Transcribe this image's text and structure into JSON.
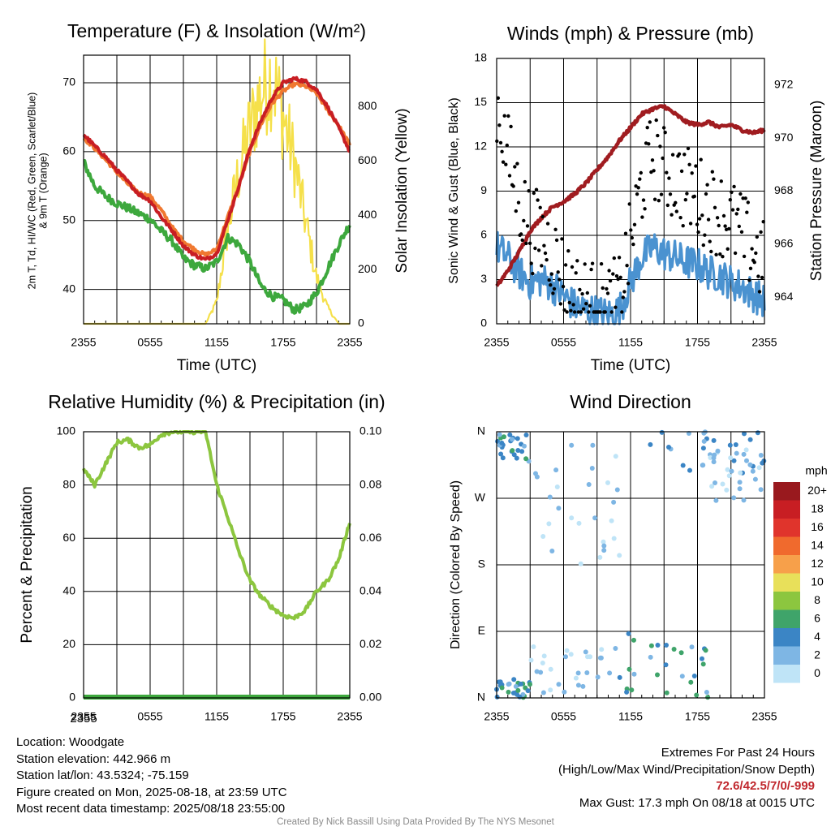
{
  "chart_data": [
    {
      "type": "line",
      "title": "Temperature (F) & Insolation (W/m²)",
      "xlabel": "Time (UTC)",
      "ylabel_lines": [
        "2m T, Td, HI/WC (Red, Green, Scarlet/Blue)",
        "& 9m T (Orange)"
      ],
      "y2label": "Solar Insolation (Yellow)",
      "x_ticks": [
        "2355",
        "0555",
        "1155",
        "1755",
        "2355"
      ],
      "y_ticks": [
        40,
        50,
        60,
        70
      ],
      "y2_ticks": [
        0,
        200,
        400,
        600,
        800
      ],
      "ylim": [
        35,
        74
      ],
      "y2lim": [
        0,
        990
      ],
      "grid": true,
      "x_hours": [
        0,
        1,
        2,
        3,
        4,
        5,
        6,
        7,
        8,
        9,
        10,
        11,
        12,
        13,
        14,
        15,
        16,
        17,
        18,
        19,
        20,
        21,
        22,
        23,
        24
      ],
      "series": [
        {
          "name": "2m T",
          "color": "#c81e23",
          "axis": "left",
          "values": [
            62.5,
            60.8,
            59.2,
            57.3,
            55.6,
            53.8,
            52.9,
            50.5,
            48.5,
            46.3,
            45.0,
            44.3,
            45.2,
            50.0,
            55.0,
            60.5,
            64.5,
            67.8,
            70.0,
            70.6,
            70.2,
            69.0,
            66.5,
            63.5,
            60.0
          ]
        },
        {
          "name": "9m T",
          "color": "#f07830",
          "axis": "left",
          "values": [
            62.0,
            60.5,
            58.8,
            57.0,
            55.3,
            54.0,
            53.5,
            51.5,
            49.0,
            47.0,
            45.8,
            45.0,
            45.8,
            50.5,
            55.0,
            60.0,
            64.0,
            67.0,
            68.8,
            69.8,
            69.5,
            68.5,
            66.0,
            63.8,
            61.0
          ]
        },
        {
          "name": "Td",
          "color": "#3da83d",
          "axis": "left",
          "values": [
            58.5,
            55.0,
            53.5,
            52.5,
            51.8,
            51.0,
            50.2,
            48.5,
            47.0,
            44.5,
            43.5,
            43.0,
            44.0,
            47.5,
            46.5,
            44.0,
            40.5,
            39.0,
            38.5,
            37.0,
            37.5,
            39.5,
            43.0,
            46.5,
            49.5
          ]
        },
        {
          "name": "Solar Insolation",
          "color": "#f5e04a",
          "axis": "right",
          "values": [
            0,
            0,
            0,
            0,
            0,
            0,
            0,
            0,
            0,
            0,
            0,
            0,
            80,
            350,
            560,
            720,
            850,
            920,
            760,
            600,
            380,
            170,
            60,
            0,
            0
          ]
        }
      ]
    },
    {
      "type": "line",
      "title": "Winds (mph) & Pressure (mb)",
      "xlabel": "Time (UTC)",
      "ylabel": "Sonic Wind & Gust (Blue, Black)",
      "y2label": "Station Pressure (Maroon)",
      "x_ticks": [
        "2355",
        "0555",
        "1155",
        "1755",
        "2355"
      ],
      "y_ticks": [
        0,
        3,
        6,
        9,
        12,
        15,
        18
      ],
      "y2_ticks": [
        964,
        966,
        968,
        970,
        972
      ],
      "ylim": [
        0,
        18
      ],
      "y2lim": [
        963,
        973
      ],
      "grid": true,
      "x_hours": [
        0,
        1,
        2,
        3,
        4,
        5,
        6,
        7,
        8,
        9,
        10,
        11,
        12,
        13,
        14,
        15,
        16,
        17,
        18,
        19,
        20,
        21,
        22,
        23,
        24
      ],
      "series": [
        {
          "name": "Sonic Wind",
          "color": "#4a92d0",
          "axis": "left",
          "values": [
            5.2,
            4.5,
            3.5,
            2.8,
            3.0,
            2.6,
            1.9,
            1.2,
            0.9,
            0.8,
            0.6,
            0.9,
            2.8,
            4.5,
            5.2,
            4.8,
            4.5,
            4.2,
            4.0,
            3.5,
            3.3,
            2.8,
            2.5,
            2.0,
            1.5
          ]
        },
        {
          "name": "Gust",
          "color": "#000000",
          "axis": "left",
          "style": "points",
          "values": [
            15.0,
            11.5,
            8.5,
            6.5,
            6.0,
            4.8,
            3.2,
            2.0,
            1.6,
            1.3,
            1.2,
            1.8,
            5.5,
            9.5,
            11.5,
            10.5,
            9.8,
            9.2,
            8.6,
            8.0,
            7.5,
            7.0,
            6.0,
            5.0,
            4.0
          ]
        },
        {
          "name": "Station Pressure",
          "color": "#a01c20",
          "axis": "right",
          "values": [
            964.4,
            965.0,
            965.7,
            966.5,
            967.0,
            967.4,
            967.6,
            967.9,
            968.3,
            968.8,
            969.3,
            969.9,
            970.4,
            970.9,
            971.1,
            971.2,
            970.9,
            970.6,
            970.5,
            970.6,
            970.4,
            970.5,
            970.3,
            970.2,
            970.3
          ]
        }
      ]
    },
    {
      "type": "line",
      "title": "Relative Humidity (%) & Precipitation (in)",
      "ylabel": "Percent & Precipitation",
      "x_ticks": [
        "2355",
        "0555",
        "1155",
        "1755",
        "2355"
      ],
      "y_ticks": [
        0,
        20,
        40,
        60,
        80,
        100
      ],
      "y2_ticks": [
        "0.00",
        "0.02",
        "0.04",
        "0.06",
        "0.08",
        "0.10"
      ],
      "ylim": [
        0,
        100
      ],
      "y2lim": [
        0,
        0.1
      ],
      "grid": true,
      "x_hours": [
        0,
        1,
        2,
        3,
        4,
        5,
        6,
        7,
        8,
        9,
        10,
        11,
        12,
        13,
        14,
        15,
        16,
        17,
        18,
        19,
        20,
        21,
        22,
        23,
        24
      ],
      "series": [
        {
          "name": "Relative Humidity",
          "color": "#8cc63f",
          "axis": "left",
          "values": [
            86,
            80,
            88,
            96,
            97,
            94,
            95,
            99,
            100,
            100,
            100,
            100,
            80,
            68,
            55,
            44,
            38,
            34,
            31,
            30,
            33,
            40,
            44,
            52,
            66
          ]
        },
        {
          "name": "Precipitation",
          "color": "#3da83d",
          "axis": "right",
          "values": [
            0,
            0,
            0,
            0,
            0,
            0,
            0,
            0,
            0,
            0,
            0,
            0,
            0,
            0,
            0,
            0,
            0,
            0,
            0,
            0,
            0,
            0,
            0,
            0,
            0
          ]
        }
      ]
    },
    {
      "type": "scatter",
      "title": "Wind Direction",
      "ylabel": "Direction (Colored By Speed)",
      "x_ticks": [
        "2355",
        "0555",
        "1155",
        "1755",
        "2355"
      ],
      "y_ticks": [
        "N",
        "E",
        "S",
        "W",
        "N"
      ],
      "ylim": [
        0,
        360
      ],
      "grid": true,
      "colorbar": {
        "unit": "mph",
        "labels": [
          "20+",
          "18",
          "16",
          "14",
          "12",
          "10",
          "8",
          "6",
          "4",
          "2",
          "0"
        ],
        "colors": [
          "#99191e",
          "#c81e23",
          "#e0342c",
          "#f06a2d",
          "#f7a04a",
          "#e8e05a",
          "#8cc63f",
          "#3fa46a",
          "#3b85c5",
          "#7eb6e4",
          "#bfe4f7"
        ]
      },
      "clusters": [
        {
          "hours": [
            0,
            3
          ],
          "dir": [
            320,
            360
          ],
          "speed": [
            2,
            6
          ]
        },
        {
          "hours": [
            0,
            3
          ],
          "dir": [
            0,
            25
          ],
          "speed": [
            2,
            6
          ]
        },
        {
          "hours": [
            3,
            11
          ],
          "dir": [
            180,
            350
          ],
          "speed": [
            0,
            2
          ]
        },
        {
          "hours": [
            3,
            11
          ],
          "dir": [
            5,
            70
          ],
          "speed": [
            0,
            3
          ]
        },
        {
          "hours": [
            11,
            19
          ],
          "dir": [
            0,
            90
          ],
          "speed": [
            2,
            7
          ]
        },
        {
          "hours": [
            13,
            24
          ],
          "dir": [
            300,
            360
          ],
          "speed": [
            2,
            5
          ]
        },
        {
          "hours": [
            19,
            24
          ],
          "dir": [
            260,
            340
          ],
          "speed": [
            0,
            2
          ]
        }
      ]
    }
  ],
  "info": {
    "location": "Location: Woodgate",
    "elevation": "Station elevation: 442.966 m",
    "latlon": "Station lat/lon: 43.5324; -75.159",
    "created": "Figure created on Mon, 2025-08-18, at 23:59 UTC",
    "recent": "Most recent data timestamp: 2025/08/18 23:55:00"
  },
  "extremes": {
    "title": "Extremes For Past 24 Hours",
    "subtitle": "(High/Low/Max Wind/Precipitation/Snow Depth)",
    "values": "72.6/42.5/7/0/-999",
    "max_gust": "Max Gust: 17.3 mph On 08/18 at 0015 UTC"
  },
  "credit": "Created By Nick Bassill Using Data Provided By The NYS Mesonet"
}
